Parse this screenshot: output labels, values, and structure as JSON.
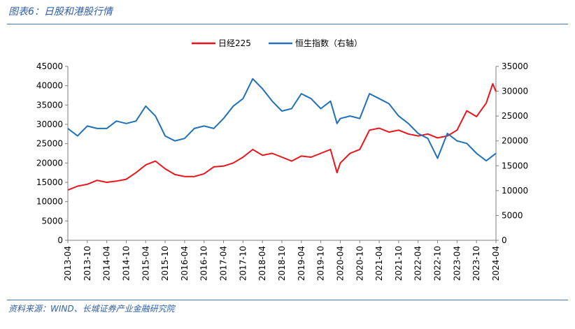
{
  "figure": {
    "title": "图表6：日股和港股行情",
    "source": "资料来源：WIND、长城证券产业金融研究院"
  },
  "chart_data": {
    "type": "line",
    "title": "",
    "xlabel": "",
    "ylabel_left": "",
    "ylabel_right": "",
    "x_tick_labels": [
      "2013-04",
      "2013-10",
      "2014-04",
      "2014-10",
      "2015-04",
      "2015-10",
      "2016-04",
      "2016-10",
      "2017-04",
      "2017-10",
      "2018-04",
      "2018-10",
      "2019-04",
      "2019-10",
      "2020-04",
      "2020-10",
      "2021-04",
      "2021-10",
      "2022-04",
      "2022-10",
      "2023-04",
      "2023-10",
      "2024-04"
    ],
    "y_left": {
      "lim": [
        0,
        45000
      ],
      "ticks": [
        0,
        5000,
        10000,
        15000,
        20000,
        25000,
        30000,
        35000,
        40000,
        45000
      ]
    },
    "y_right": {
      "lim": [
        0,
        35000
      ],
      "ticks": [
        0,
        5000,
        10000,
        15000,
        20000,
        25000,
        30000,
        35000
      ]
    },
    "legend": {
      "placement": "top-center",
      "suffix": "（右轴）"
    },
    "grid": false,
    "x": [
      "2013-04",
      "2013-07",
      "2013-10",
      "2014-01",
      "2014-04",
      "2014-07",
      "2014-10",
      "2015-01",
      "2015-04",
      "2015-07",
      "2015-10",
      "2016-01",
      "2016-04",
      "2016-07",
      "2016-10",
      "2017-01",
      "2017-04",
      "2017-07",
      "2017-10",
      "2018-01",
      "2018-04",
      "2018-07",
      "2018-10",
      "2019-01",
      "2019-04",
      "2019-07",
      "2019-10",
      "2020-01",
      "2020-03",
      "2020-04",
      "2020-07",
      "2020-10",
      "2021-01",
      "2021-04",
      "2021-07",
      "2021-10",
      "2022-01",
      "2022-04",
      "2022-07",
      "2022-10",
      "2023-01",
      "2023-04",
      "2023-07",
      "2023-10",
      "2024-01",
      "2024-03",
      "2024-04"
    ],
    "series": [
      {
        "name": "日经225",
        "axis": "left",
        "color": "#e8161c",
        "values": [
          13000,
          14000,
          14500,
          15500,
          15000,
          15300,
          15800,
          17500,
          19500,
          20500,
          18500,
          17000,
          16500,
          16500,
          17200,
          19000,
          19200,
          20000,
          21500,
          23500,
          22000,
          22500,
          21500,
          20500,
          21800,
          21500,
          22500,
          23500,
          17500,
          20000,
          22500,
          23500,
          28500,
          29000,
          28000,
          28500,
          27500,
          27000,
          27500,
          26500,
          27000,
          28500,
          33500,
          32000,
          35500,
          40500,
          38500
        ]
      },
      {
        "name": "恒生指数",
        "axis": "right",
        "color": "#2071b8",
        "values": [
          22500,
          21000,
          23000,
          22500,
          22500,
          24000,
          23500,
          24000,
          27000,
          25000,
          21000,
          20000,
          20500,
          22500,
          23000,
          22500,
          24500,
          27000,
          28500,
          32500,
          30500,
          28000,
          26000,
          26500,
          29500,
          28500,
          26500,
          28000,
          23500,
          24500,
          25000,
          24500,
          29500,
          28500,
          27500,
          25000,
          23500,
          21500,
          20500,
          16500,
          21500,
          20000,
          19500,
          17500,
          16000,
          17000,
          17500
        ]
      }
    ]
  }
}
